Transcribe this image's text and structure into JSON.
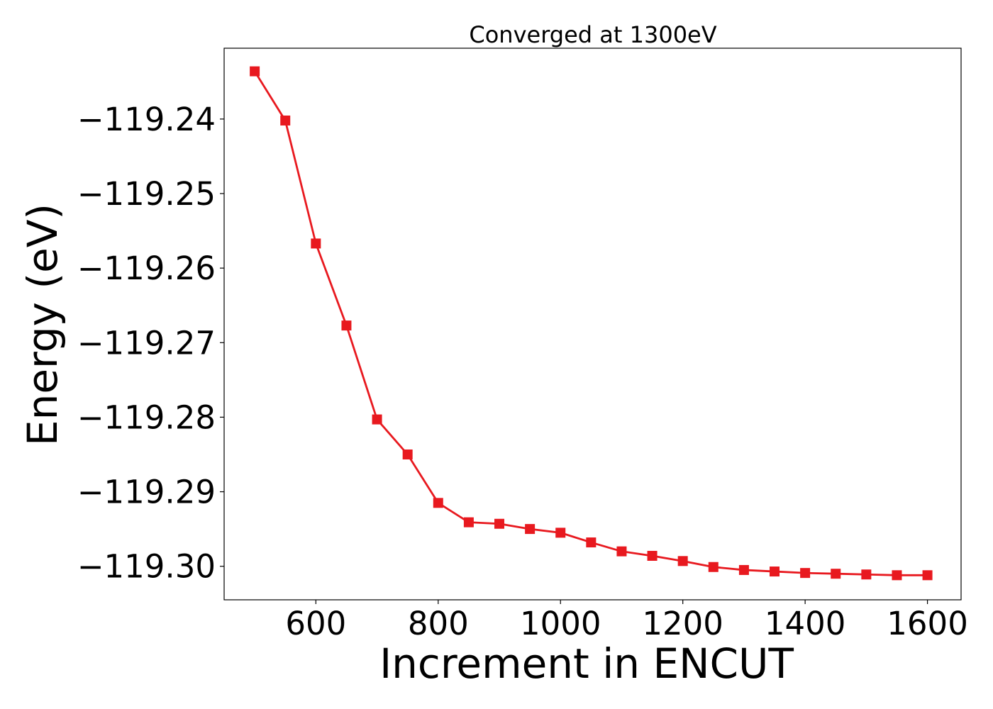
{
  "chart_data": {
    "type": "line",
    "title": "Converged at 1300eV",
    "xlabel": "Increment in ENCUT",
    "ylabel": "Energy (eV)",
    "xlim": [
      450,
      1655
    ],
    "ylim": [
      -119.3045,
      -119.2305
    ],
    "x_ticks": [
      600,
      800,
      1000,
      1200,
      1400,
      1600
    ],
    "x_tick_labels": [
      "600",
      "800",
      "1000",
      "1200",
      "1400",
      "1600"
    ],
    "y_ticks": [
      -119.24,
      -119.25,
      -119.26,
      -119.27,
      -119.28,
      -119.29,
      -119.3
    ],
    "y_tick_labels": [
      "−119.24",
      "−119.25",
      "−119.26",
      "−119.27",
      "−119.28",
      "−119.29",
      "−119.30"
    ],
    "grid": false,
    "legend": "none",
    "series": [
      {
        "color": "#e8191f",
        "marker": "square",
        "x": [
          500,
          550,
          600,
          650,
          700,
          750,
          800,
          850,
          900,
          950,
          1000,
          1050,
          1100,
          1150,
          1200,
          1250,
          1300,
          1350,
          1400,
          1450,
          1500,
          1550,
          1600
        ],
        "y": [
          -119.2336,
          -119.2402,
          -119.2567,
          -119.2677,
          -119.2803,
          -119.285,
          -119.2915,
          -119.2941,
          -119.2943,
          -119.295,
          -119.2955,
          -119.2968,
          -119.298,
          -119.2986,
          -119.2993,
          -119.3001,
          -119.3005,
          -119.3007,
          -119.3009,
          -119.301,
          -119.3011,
          -119.3012,
          -119.3012
        ]
      }
    ]
  }
}
